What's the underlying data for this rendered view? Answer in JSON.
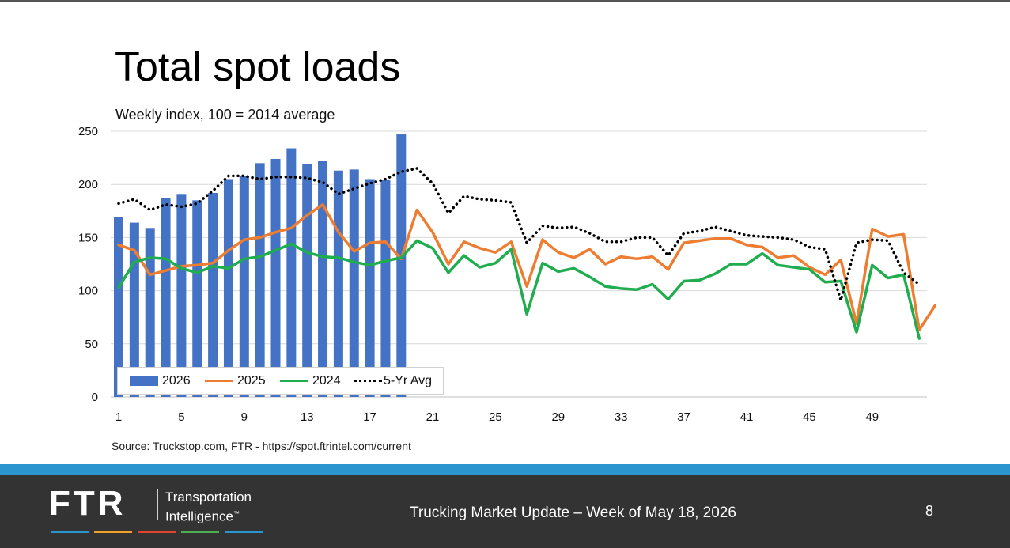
{
  "slide": {
    "title": "Total spot loads",
    "subtitle": "Weekly index, 100 = 2014 average",
    "source": "Source: Truckstop.com, FTR - https://spot.ftrintel.com/current"
  },
  "footer": {
    "logo": "FTR",
    "tagline_line1": "Transportation",
    "tagline_line2": "Intelligence",
    "trademark": "™",
    "text": "Trucking Market Update – Week of May 18, 2026",
    "page_number": "8"
  },
  "colors": {
    "s2026": "#4472c4",
    "s2025": "#ed7d31",
    "s2024": "#1fad4f",
    "avg": "#000000",
    "footer_band": "#2b95cf",
    "footer_bg": "#333333",
    "logo_stripes": [
      "#2b95cf",
      "#f0a02b",
      "#e0442b",
      "#4caf50",
      "#2b95cf"
    ]
  },
  "chart_data": {
    "type": "bar",
    "ylim": [
      0,
      250
    ],
    "yticks": [
      "0",
      "50",
      "100",
      "150",
      "200",
      "250"
    ],
    "xlim": [
      1,
      52
    ],
    "xticks": [
      "1",
      "5",
      "9",
      "13",
      "17",
      "21",
      "25",
      "29",
      "33",
      "37",
      "41",
      "45",
      "49"
    ],
    "grid": true,
    "legend_position": "bottom-left",
    "legend": [
      "2026",
      "2025",
      "2024",
      "5-Yr Avg"
    ],
    "series": [
      {
        "name": "2026",
        "type": "bar",
        "values": [
          169,
          164,
          159,
          187,
          191,
          185,
          192,
          205,
          208,
          220,
          224,
          234,
          219,
          222,
          213,
          214,
          205,
          204,
          247
        ]
      },
      {
        "name": "2025",
        "type": "line",
        "values": [
          143,
          138,
          115,
          119,
          123,
          124,
          126,
          138,
          148,
          150,
          155,
          159,
          171,
          181,
          155,
          137,
          145,
          146,
          130,
          176,
          155,
          125,
          146,
          140,
          136,
          146,
          104,
          148,
          136,
          131,
          139,
          125,
          132,
          130,
          132,
          120,
          145,
          147,
          149,
          149,
          143,
          141,
          131,
          133,
          122,
          115,
          129,
          69,
          158,
          151,
          153,
          63,
          86
        ]
      },
      {
        "name": "2024",
        "type": "line",
        "values": [
          103,
          127,
          131,
          130,
          121,
          117,
          123,
          121,
          130,
          132,
          138,
          144,
          136,
          132,
          131,
          127,
          124,
          128,
          131,
          147,
          140,
          117,
          133,
          122,
          126,
          139,
          78,
          126,
          118,
          121,
          113,
          104,
          102,
          101,
          106,
          92,
          109,
          110,
          116,
          125,
          125,
          135,
          124,
          122,
          120,
          108,
          109,
          61,
          124,
          112,
          115,
          55
        ]
      },
      {
        "name": "5-Yr Avg",
        "type": "line",
        "values": [
          182,
          186,
          176,
          181,
          179,
          182,
          194,
          208,
          208,
          205,
          207,
          207,
          206,
          202,
          191,
          196,
          201,
          205,
          212,
          215,
          201,
          173,
          189,
          186,
          185,
          183,
          145,
          161,
          159,
          160,
          154,
          146,
          146,
          150,
          150,
          133,
          154,
          156,
          160,
          156,
          152,
          151,
          150,
          148,
          141,
          139,
          91,
          145,
          148,
          147,
          117,
          106
        ]
      }
    ]
  }
}
